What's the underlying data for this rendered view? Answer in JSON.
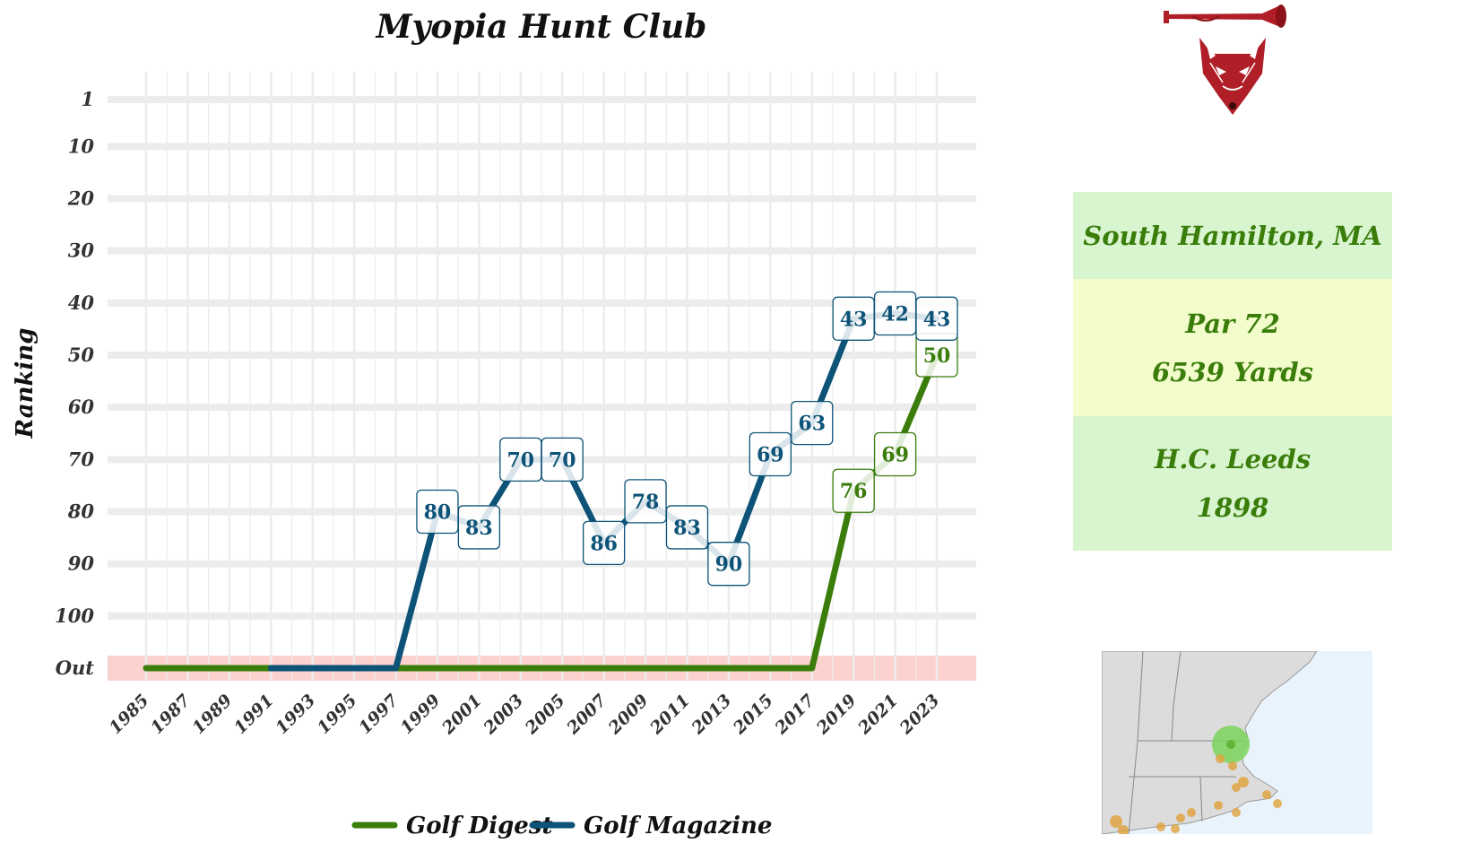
{
  "chart_data": {
    "type": "line",
    "title": "Myopia Hunt Club",
    "ylabel": "Ranking",
    "xlabel": "",
    "y_ticks": [
      "1",
      "10",
      "20",
      "30",
      "40",
      "50",
      "60",
      "70",
      "80",
      "90",
      "100",
      "Out"
    ],
    "y_tick_values": [
      1,
      10,
      20,
      30,
      40,
      50,
      60,
      70,
      80,
      90,
      100,
      110
    ],
    "ylim": [
      1,
      110
    ],
    "y_reversed": true,
    "out_band_value": 110,
    "x_ticks": [
      "1985",
      "1987",
      "1989",
      "1991",
      "1993",
      "1995",
      "1997",
      "1999",
      "2001",
      "2003",
      "2005",
      "2007",
      "2009",
      "2011",
      "2013",
      "2015",
      "2017",
      "2019",
      "2021",
      "2023"
    ],
    "xlim": [
      1985,
      2023
    ],
    "grid": true,
    "legend_position": "bottom",
    "series": [
      {
        "name": "Golf Digest",
        "color": "#3a7d0a",
        "points": [
          {
            "x": 1985,
            "y": 110
          },
          {
            "x": 1987,
            "y": 110
          },
          {
            "x": 1989,
            "y": 110
          },
          {
            "x": 1991,
            "y": 110
          },
          {
            "x": 1993,
            "y": 110
          },
          {
            "x": 1995,
            "y": 110
          },
          {
            "x": 1997,
            "y": 110
          },
          {
            "x": 1999,
            "y": 110
          },
          {
            "x": 2001,
            "y": 110
          },
          {
            "x": 2003,
            "y": 110
          },
          {
            "x": 2005,
            "y": 110
          },
          {
            "x": 2007,
            "y": 110
          },
          {
            "x": 2009,
            "y": 110
          },
          {
            "x": 2011,
            "y": 110
          },
          {
            "x": 2013,
            "y": 110
          },
          {
            "x": 2015,
            "y": 110
          },
          {
            "x": 2017,
            "y": 110
          },
          {
            "x": 2019,
            "y": 76,
            "label": "76"
          },
          {
            "x": 2021,
            "y": 69,
            "label": "69"
          },
          {
            "x": 2023,
            "y": 50,
            "label": "50"
          }
        ]
      },
      {
        "name": "Golf Magazine",
        "color": "#0d5378",
        "points": [
          {
            "x": 1991,
            "y": 110
          },
          {
            "x": 1993,
            "y": 110
          },
          {
            "x": 1995,
            "y": 110
          },
          {
            "x": 1997,
            "y": 110
          },
          {
            "x": 1999,
            "y": 80,
            "label": "80"
          },
          {
            "x": 2001,
            "y": 83,
            "label": "83"
          },
          {
            "x": 2003,
            "y": 70,
            "label": "70"
          },
          {
            "x": 2005,
            "y": 70,
            "label": "70"
          },
          {
            "x": 2007,
            "y": 86,
            "label": "86"
          },
          {
            "x": 2009,
            "y": 78,
            "label": "78"
          },
          {
            "x": 2011,
            "y": 83,
            "label": "83"
          },
          {
            "x": 2013,
            "y": 90,
            "label": "90"
          },
          {
            "x": 2015,
            "y": 69,
            "label": "69"
          },
          {
            "x": 2017,
            "y": 63,
            "label": "63"
          },
          {
            "x": 2019,
            "y": 43,
            "label": "43"
          },
          {
            "x": 2021,
            "y": 42,
            "label": "42"
          },
          {
            "x": 2023,
            "y": 43,
            "label": "43"
          }
        ]
      }
    ]
  },
  "info": {
    "location": "South Hamilton, MA",
    "par": "Par 72",
    "yards": "6539 Yards",
    "designer": "H.C. Leeds",
    "year": "1898"
  },
  "colors": {
    "out_band": "#fcd2cf",
    "grid": "#ececec",
    "card_green": "#d8f5d0",
    "card_yellow": "#f3fccb",
    "card_text": "#3a7d0a",
    "emblem_red": "#b01e28"
  },
  "icons": {
    "emblem": "fox-head-horn-emblem",
    "map": "new-england-locator-map"
  }
}
